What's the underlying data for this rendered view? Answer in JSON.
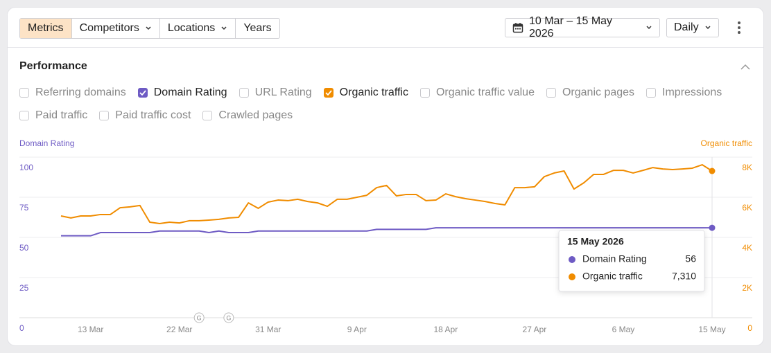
{
  "toolbar": {
    "tabs": [
      {
        "label": "Metrics",
        "active": true,
        "dropdown": false
      },
      {
        "label": "Competitors",
        "active": false,
        "dropdown": true
      },
      {
        "label": "Locations",
        "active": false,
        "dropdown": true
      },
      {
        "label": "Years",
        "active": false,
        "dropdown": false
      }
    ],
    "date_range": "10 Mar – 15 May 2026",
    "interval": "Daily"
  },
  "panel": {
    "title": "Performance"
  },
  "checkboxes": {
    "rows": [
      [
        {
          "label": "Referring domains",
          "checked": false
        },
        {
          "label": "Domain Rating",
          "checked": true,
          "color": "#6e5bc4"
        },
        {
          "label": "URL Rating",
          "checked": false
        },
        {
          "label": "Organic traffic",
          "checked": true,
          "color": "#f08c00"
        },
        {
          "label": "Organic traffic value",
          "checked": false
        },
        {
          "label": "Organic pages",
          "checked": false
        },
        {
          "label": "Impressions",
          "checked": false
        }
      ],
      [
        {
          "label": "Paid traffic",
          "checked": false
        },
        {
          "label": "Paid traffic cost",
          "checked": false
        },
        {
          "label": "Crawled pages",
          "checked": false
        }
      ]
    ]
  },
  "chart_data": {
    "type": "line",
    "y_label": "Domain Rating",
    "y2_label": "Organic traffic",
    "categories": [
      null,
      null,
      null,
      "13 Mar",
      null,
      null,
      null,
      null,
      null,
      null,
      null,
      null,
      "22 Mar",
      null,
      null,
      null,
      null,
      null,
      null,
      null,
      null,
      "31 Mar",
      null,
      null,
      null,
      null,
      null,
      null,
      null,
      null,
      "9 Apr",
      null,
      null,
      null,
      null,
      null,
      null,
      null,
      null,
      "18 Apr",
      null,
      null,
      null,
      null,
      null,
      null,
      null,
      null,
      "27 Apr",
      null,
      null,
      null,
      null,
      null,
      null,
      null,
      null,
      "6 May",
      null,
      null,
      null,
      null,
      null,
      null,
      null,
      null,
      "15 May"
    ],
    "ylim": [
      0,
      100
    ],
    "yticks": [
      0,
      25,
      50,
      75,
      100
    ],
    "y2lim": [
      0,
      8000
    ],
    "y2ticks": [
      0,
      {
        "value": 2000,
        "label": "2K"
      },
      {
        "value": 4000,
        "label": "4K"
      },
      {
        "value": 6000,
        "label": "6K"
      },
      {
        "value": 8000,
        "label": "8K"
      }
    ],
    "grid": true,
    "series": [
      {
        "name": "Domain Rating",
        "color": "#6e5bc4",
        "values": [
          51,
          51,
          51,
          51,
          53,
          53,
          53,
          53,
          53,
          53,
          54,
          54,
          54,
          54,
          54,
          53,
          54,
          53,
          53,
          53,
          54,
          54,
          54,
          54,
          54,
          54,
          54,
          54,
          54,
          54,
          54,
          54,
          55,
          55,
          55,
          55,
          55,
          55,
          56,
          56,
          56,
          56,
          56,
          56,
          56,
          56,
          56,
          56,
          56,
          56,
          56,
          56,
          56,
          56,
          56,
          56,
          56,
          56,
          56,
          56,
          56,
          56,
          56,
          56,
          56,
          56,
          56
        ]
      },
      {
        "name": "Organic traffic",
        "color": "#f08c00",
        "axis": "y2",
        "values": [
          5070,
          4970,
          5070,
          5070,
          5140,
          5140,
          5480,
          5520,
          5590,
          4760,
          4690,
          4760,
          4720,
          4830,
          4830,
          4860,
          4900,
          4970,
          5000,
          5720,
          5450,
          5760,
          5860,
          5830,
          5900,
          5790,
          5720,
          5550,
          5900,
          5900,
          6000,
          6100,
          6480,
          6590,
          6070,
          6140,
          6140,
          5830,
          5860,
          6170,
          6030,
          5930,
          5860,
          5790,
          5690,
          5620,
          6480,
          6480,
          6520,
          7030,
          7210,
          7310,
          6410,
          6720,
          7140,
          7140,
          7340,
          7340,
          7210,
          7340,
          7480,
          7410,
          7380,
          7410,
          7450,
          7620,
          7310
        ]
      }
    ],
    "annotations": [
      {
        "label": "G",
        "index": 14
      },
      {
        "label": "G",
        "index": 17
      }
    ],
    "tooltip": {
      "title": "15 May 2026",
      "value_labels": [
        "56",
        "7,310"
      ]
    }
  }
}
